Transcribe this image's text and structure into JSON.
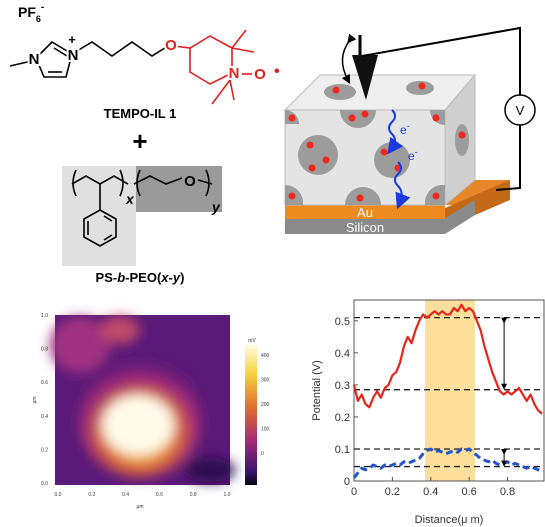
{
  "structure": {
    "anion": {
      "text": "PF",
      "subscript": "6",
      "superscript": "-"
    },
    "imidazolium": {
      "methyl_n": "N",
      "cation_n": "N",
      "charge": "+"
    },
    "ether_o": "O",
    "nitroxide": {
      "n": "N",
      "o": "O",
      "radical": "•"
    },
    "name": "TEMPO-IL 1",
    "plus": "+",
    "polymer": {
      "x": "x",
      "y": "y",
      "o": "O",
      "name_parts": [
        "PS-",
        "b",
        "-PEO(",
        "x",
        "-",
        "y",
        ")"
      ]
    }
  },
  "schematic": {
    "electron_labels": [
      {
        "text": "e",
        "superscript": "-"
      },
      {
        "text": "e",
        "superscript": "-"
      }
    ],
    "gold": "Au",
    "substrate": "Silicon",
    "voltmeter": "V"
  },
  "afm_image": {
    "xticks": [
      "0.0",
      "0.2",
      "0.4",
      "0.6",
      "0.8",
      "1.0"
    ],
    "yticks": [
      "0.0",
      "0.2",
      "0.4",
      "0.6",
      "0.8",
      "1.0"
    ],
    "xlabel": "μm",
    "ylabel": "μm",
    "colorbar_label": "mV",
    "colorbar_ticks": [
      "400",
      "300",
      "200",
      "100",
      "0"
    ]
  },
  "chart_data": {
    "type": "line",
    "xlabel": "Distance(μ m)",
    "ylabel": "Potential (V)",
    "x": [
      0,
      0.02,
      0.04,
      0.06,
      0.08,
      0.1,
      0.12,
      0.14,
      0.16,
      0.18,
      0.2,
      0.22,
      0.24,
      0.26,
      0.28,
      0.3,
      0.32,
      0.34,
      0.36,
      0.38,
      0.4,
      0.42,
      0.44,
      0.46,
      0.48,
      0.5,
      0.52,
      0.54,
      0.56,
      0.58,
      0.6,
      0.62,
      0.64,
      0.66,
      0.68,
      0.7,
      0.72,
      0.74,
      0.76,
      0.78,
      0.8,
      0.82,
      0.84,
      0.86,
      0.88,
      0.9,
      0.92,
      0.94,
      0.96,
      0.98
    ],
    "series": [
      {
        "color": "#e8231c",
        "dashed": false,
        "values": [
          0.3,
          0.25,
          0.27,
          0.24,
          0.23,
          0.26,
          0.28,
          0.26,
          0.29,
          0.3,
          0.33,
          0.34,
          0.37,
          0.42,
          0.45,
          0.43,
          0.47,
          0.5,
          0.52,
          0.51,
          0.52,
          0.53,
          0.52,
          0.53,
          0.52,
          0.52,
          0.54,
          0.53,
          0.55,
          0.53,
          0.54,
          0.53,
          0.5,
          0.47,
          0.42,
          0.38,
          0.34,
          0.31,
          0.28,
          0.27,
          0.28,
          0.27,
          0.28,
          0.29,
          0.27,
          0.25,
          0.27,
          0.24,
          0.22,
          0.21
        ]
      },
      {
        "color": "#2255cc",
        "dashed": true,
        "values": [
          0.01,
          0.025,
          0.04,
          0.035,
          0.04,
          0.05,
          0.045,
          0.04,
          0.05,
          0.045,
          0.05,
          0.055,
          0.05,
          0.06,
          0.055,
          0.06,
          0.065,
          0.07,
          0.085,
          0.095,
          0.1,
          0.09,
          0.095,
          0.09,
          0.085,
          0.09,
          0.095,
          0.09,
          0.1,
          0.095,
          0.1,
          0.09,
          0.08,
          0.07,
          0.065,
          0.06,
          0.065,
          0.055,
          0.05,
          0.055,
          0.06,
          0.05,
          0.055,
          0.05,
          0.045,
          0.04,
          0.045,
          0.04,
          0.035,
          0.03
        ]
      }
    ],
    "reference_lines": [
      0.51,
      0.285,
      0.1,
      0.045
    ],
    "highlight_band": [
      0.37,
      0.63
    ],
    "band_color": "#fbd98a",
    "xlim": [
      0,
      0.99
    ],
    "ylim": [
      0,
      0.565
    ],
    "xticks": [
      0,
      0.2,
      0.4,
      0.6,
      0.8
    ],
    "yticks": [
      0,
      0.1,
      0.2,
      0.3,
      0.4,
      0.5
    ]
  }
}
